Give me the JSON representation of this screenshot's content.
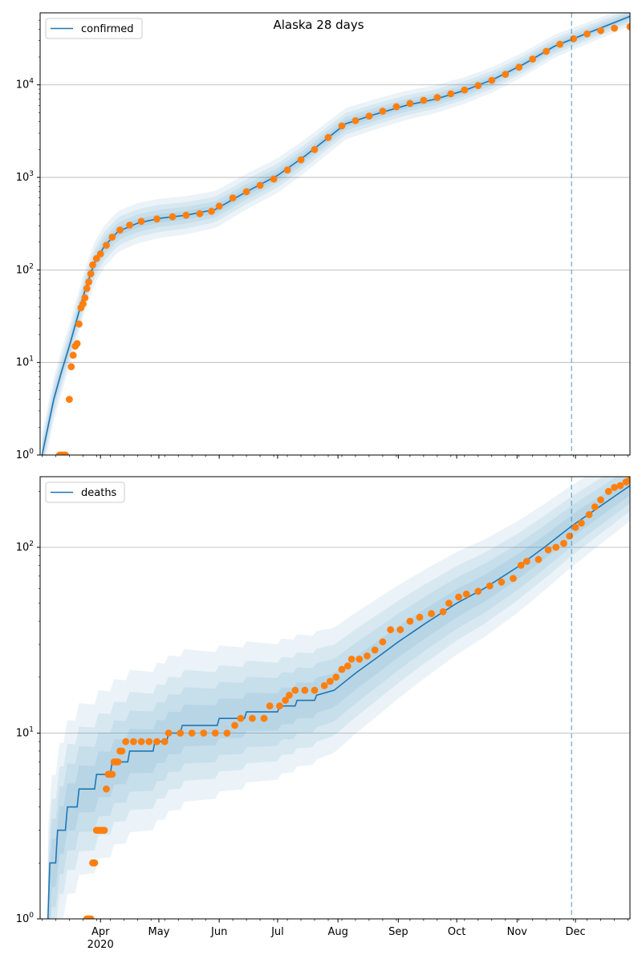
{
  "title": "Alaska 28 days",
  "colors": {
    "model": "#1f77b4",
    "observed": "#ff7f0e",
    "band": "#1f77b4",
    "vline": "#1f77b4",
    "grid": "#b0b0b0"
  },
  "x_axis": {
    "range": [
      "2020-03-01",
      "2020-12-29"
    ],
    "month_ticks": [
      {
        "date": "2020-04-01",
        "label": "Apr",
        "sublabel": "2020"
      },
      {
        "date": "2020-05-01",
        "label": "May"
      },
      {
        "date": "2020-06-01",
        "label": "Jun"
      },
      {
        "date": "2020-07-01",
        "label": "Jul"
      },
      {
        "date": "2020-08-01",
        "label": "Aug"
      },
      {
        "date": "2020-09-01",
        "label": "Sep"
      },
      {
        "date": "2020-10-01",
        "label": "Oct"
      },
      {
        "date": "2020-11-01",
        "label": "Nov"
      },
      {
        "date": "2020-12-01",
        "label": "Dec"
      }
    ],
    "forecast_line_date": "2020-11-29"
  },
  "chart_data": [
    {
      "type": "line",
      "scale": "log",
      "legend": "confirmed",
      "legend_position": "top-left",
      "grid": "y-major",
      "ylim": [
        1,
        60000
      ],
      "yticks": [
        {
          "value": 1,
          "base": "10",
          "exp": "0"
        },
        {
          "value": 10,
          "base": "10",
          "exp": "1"
        },
        {
          "value": 100,
          "base": "10",
          "exp": "2"
        },
        {
          "value": 1000,
          "base": "10",
          "exp": "3"
        },
        {
          "value": 10000,
          "base": "10",
          "exp": "4"
        }
      ],
      "model": [
        [
          "2020-03-02",
          1
        ],
        [
          "2020-03-05",
          2
        ],
        [
          "2020-03-08",
          4
        ],
        [
          "2020-03-12",
          8
        ],
        [
          "2020-03-16",
          15
        ],
        [
          "2020-03-20",
          30
        ],
        [
          "2020-03-24",
          60
        ],
        [
          "2020-03-29",
          120
        ],
        [
          "2020-04-03",
          180
        ],
        [
          "2020-04-10",
          260
        ],
        [
          "2020-04-20",
          320
        ],
        [
          "2020-05-01",
          360
        ],
        [
          "2020-05-15",
          390
        ],
        [
          "2020-05-30",
          450
        ],
        [
          "2020-06-15",
          700
        ],
        [
          "2020-07-01",
          1050
        ],
        [
          "2020-07-15",
          1700
        ],
        [
          "2020-07-25",
          2500
        ],
        [
          "2020-08-05",
          3800
        ],
        [
          "2020-08-20",
          4800
        ],
        [
          "2020-09-05",
          6000
        ],
        [
          "2020-09-20",
          7000
        ],
        [
          "2020-10-05",
          8700
        ],
        [
          "2020-10-20",
          11500
        ],
        [
          "2020-11-05",
          17000
        ],
        [
          "2020-11-20",
          26000
        ],
        [
          "2020-11-29",
          31000
        ],
        [
          "2020-12-15",
          42000
        ],
        [
          "2020-12-29",
          55000
        ]
      ],
      "observed": [
        [
          "2020-03-11",
          1
        ],
        [
          "2020-03-12",
          1
        ],
        [
          "2020-03-13",
          1
        ],
        [
          "2020-03-14",
          1
        ],
        [
          "2020-03-16",
          4
        ],
        [
          "2020-03-17",
          9
        ],
        [
          "2020-03-18",
          12
        ],
        [
          "2020-03-19",
          15
        ],
        [
          "2020-03-20",
          16
        ],
        [
          "2020-03-21",
          26
        ],
        [
          "2020-03-22",
          39
        ],
        [
          "2020-03-23",
          43
        ],
        [
          "2020-03-24",
          50
        ],
        [
          "2020-03-25",
          63
        ],
        [
          "2020-03-26",
          74
        ],
        [
          "2020-03-27",
          91
        ],
        [
          "2020-03-28",
          113
        ],
        [
          "2020-03-30",
          133
        ],
        [
          "2020-04-01",
          149
        ],
        [
          "2020-04-04",
          185
        ],
        [
          "2020-04-07",
          226
        ],
        [
          "2020-04-11",
          270
        ],
        [
          "2020-04-16",
          305
        ],
        [
          "2020-04-22",
          335
        ],
        [
          "2020-04-30",
          355
        ],
        [
          "2020-05-08",
          375
        ],
        [
          "2020-05-15",
          390
        ],
        [
          "2020-05-22",
          405
        ],
        [
          "2020-05-28",
          430
        ],
        [
          "2020-06-01",
          490
        ],
        [
          "2020-06-08",
          600
        ],
        [
          "2020-06-15",
          700
        ],
        [
          "2020-06-22",
          820
        ],
        [
          "2020-06-29",
          960
        ],
        [
          "2020-07-06",
          1200
        ],
        [
          "2020-07-13",
          1550
        ],
        [
          "2020-07-20",
          2000
        ],
        [
          "2020-07-27",
          2700
        ],
        [
          "2020-08-03",
          3600
        ],
        [
          "2020-08-10",
          4100
        ],
        [
          "2020-08-17",
          4600
        ],
        [
          "2020-08-24",
          5200
        ],
        [
          "2020-08-31",
          5800
        ],
        [
          "2020-09-07",
          6300
        ],
        [
          "2020-09-14",
          6800
        ],
        [
          "2020-09-21",
          7300
        ],
        [
          "2020-09-28",
          8000
        ],
        [
          "2020-10-05",
          8800
        ],
        [
          "2020-10-12",
          9800
        ],
        [
          "2020-10-19",
          11200
        ],
        [
          "2020-10-26",
          13000
        ],
        [
          "2020-11-02",
          15500
        ],
        [
          "2020-11-09",
          19000
        ],
        [
          "2020-11-16",
          23000
        ],
        [
          "2020-11-23",
          27500
        ],
        [
          "2020-11-30",
          31500
        ],
        [
          "2020-12-07",
          35500
        ],
        [
          "2020-12-14",
          38500
        ],
        [
          "2020-12-21",
          41000
        ],
        [
          "2020-12-29",
          42500
        ]
      ]
    },
    {
      "type": "line",
      "scale": "log",
      "legend": "deaths",
      "legend_position": "top-left",
      "grid": "y-major",
      "ylim": [
        1,
        240
      ],
      "yticks": [
        {
          "value": 1,
          "base": "10",
          "exp": "0"
        },
        {
          "value": 10,
          "base": "10",
          "exp": "1"
        },
        {
          "value": 100,
          "base": "10",
          "exp": "2"
        }
      ],
      "model": [
        [
          "2020-03-05",
          1
        ],
        [
          "2020-03-06",
          2
        ],
        [
          "2020-03-09",
          2
        ],
        [
          "2020-03-10",
          3
        ],
        [
          "2020-03-14",
          3
        ],
        [
          "2020-03-15",
          4
        ],
        [
          "2020-03-20",
          4
        ],
        [
          "2020-03-21",
          5
        ],
        [
          "2020-03-29",
          5
        ],
        [
          "2020-03-30",
          6
        ],
        [
          "2020-04-06",
          6
        ],
        [
          "2020-04-07",
          7
        ],
        [
          "2020-04-15",
          7
        ],
        [
          "2020-04-16",
          8
        ],
        [
          "2020-04-28",
          8
        ],
        [
          "2020-04-29",
          9
        ],
        [
          "2020-05-05",
          9
        ],
        [
          "2020-05-06",
          10
        ],
        [
          "2020-05-12",
          10
        ],
        [
          "2020-05-13",
          11
        ],
        [
          "2020-05-31",
          11
        ],
        [
          "2020-06-01",
          12
        ],
        [
          "2020-06-14",
          12
        ],
        [
          "2020-06-15",
          13
        ],
        [
          "2020-07-01",
          13
        ],
        [
          "2020-07-02",
          14
        ],
        [
          "2020-07-10",
          14
        ],
        [
          "2020-07-11",
          15
        ],
        [
          "2020-07-20",
          15
        ],
        [
          "2020-07-21",
          16
        ],
        [
          "2020-07-30",
          17
        ],
        [
          "2020-08-10",
          21
        ],
        [
          "2020-08-20",
          25
        ],
        [
          "2020-09-01",
          31
        ],
        [
          "2020-09-15",
          39
        ],
        [
          "2020-10-01",
          50
        ],
        [
          "2020-10-15",
          60
        ],
        [
          "2020-11-01",
          78
        ],
        [
          "2020-11-15",
          100
        ],
        [
          "2020-11-29",
          130
        ],
        [
          "2020-12-15",
          170
        ],
        [
          "2020-12-29",
          215
        ]
      ],
      "observed": [
        [
          "2020-03-25",
          1
        ],
        [
          "2020-03-26",
          1
        ],
        [
          "2020-03-27",
          1
        ],
        [
          "2020-03-28",
          2
        ],
        [
          "2020-03-29",
          2
        ],
        [
          "2020-03-30",
          3
        ],
        [
          "2020-03-31",
          3
        ],
        [
          "2020-04-01",
          3
        ],
        [
          "2020-04-02",
          3
        ],
        [
          "2020-04-03",
          3
        ],
        [
          "2020-04-04",
          5
        ],
        [
          "2020-04-05",
          6
        ],
        [
          "2020-04-06",
          6
        ],
        [
          "2020-04-07",
          6
        ],
        [
          "2020-04-08",
          7
        ],
        [
          "2020-04-09",
          7
        ],
        [
          "2020-04-10",
          7
        ],
        [
          "2020-04-11",
          8
        ],
        [
          "2020-04-12",
          8
        ],
        [
          "2020-04-14",
          9
        ],
        [
          "2020-04-18",
          9
        ],
        [
          "2020-04-22",
          9
        ],
        [
          "2020-04-26",
          9
        ],
        [
          "2020-04-30",
          9
        ],
        [
          "2020-05-04",
          9
        ],
        [
          "2020-05-06",
          10
        ],
        [
          "2020-05-12",
          10
        ],
        [
          "2020-05-18",
          10
        ],
        [
          "2020-05-24",
          10
        ],
        [
          "2020-05-30",
          10
        ],
        [
          "2020-06-05",
          10
        ],
        [
          "2020-06-09",
          11
        ],
        [
          "2020-06-12",
          12
        ],
        [
          "2020-06-18",
          12
        ],
        [
          "2020-06-24",
          12
        ],
        [
          "2020-06-27",
          14
        ],
        [
          "2020-07-02",
          14
        ],
        [
          "2020-07-05",
          15
        ],
        [
          "2020-07-07",
          16
        ],
        [
          "2020-07-10",
          17
        ],
        [
          "2020-07-15",
          17
        ],
        [
          "2020-07-20",
          17
        ],
        [
          "2020-07-25",
          18
        ],
        [
          "2020-07-28",
          19
        ],
        [
          "2020-07-31",
          20
        ],
        [
          "2020-08-03",
          22
        ],
        [
          "2020-08-06",
          23
        ],
        [
          "2020-08-08",
          25
        ],
        [
          "2020-08-12",
          25
        ],
        [
          "2020-08-16",
          26
        ],
        [
          "2020-08-20",
          28
        ],
        [
          "2020-08-24",
          31
        ],
        [
          "2020-08-28",
          36
        ],
        [
          "2020-09-02",
          36
        ],
        [
          "2020-09-07",
          40
        ],
        [
          "2020-09-12",
          42
        ],
        [
          "2020-09-18",
          44
        ],
        [
          "2020-09-24",
          45
        ],
        [
          "2020-09-27",
          50
        ],
        [
          "2020-10-02",
          54
        ],
        [
          "2020-10-06",
          56
        ],
        [
          "2020-10-12",
          58
        ],
        [
          "2020-10-18",
          62
        ],
        [
          "2020-10-24",
          65
        ],
        [
          "2020-10-30",
          68
        ],
        [
          "2020-11-03",
          80
        ],
        [
          "2020-11-06",
          84
        ],
        [
          "2020-11-12",
          86
        ],
        [
          "2020-11-17",
          97
        ],
        [
          "2020-11-21",
          100
        ],
        [
          "2020-11-25",
          105
        ],
        [
          "2020-11-28",
          115
        ],
        [
          "2020-12-01",
          128
        ],
        [
          "2020-12-04",
          135
        ],
        [
          "2020-12-08",
          150
        ],
        [
          "2020-12-11",
          165
        ],
        [
          "2020-12-14",
          180
        ],
        [
          "2020-12-18",
          200
        ],
        [
          "2020-12-21",
          210
        ],
        [
          "2020-12-24",
          215
        ],
        [
          "2020-12-27",
          225
        ],
        [
          "2020-12-29",
          230
        ]
      ]
    }
  ]
}
